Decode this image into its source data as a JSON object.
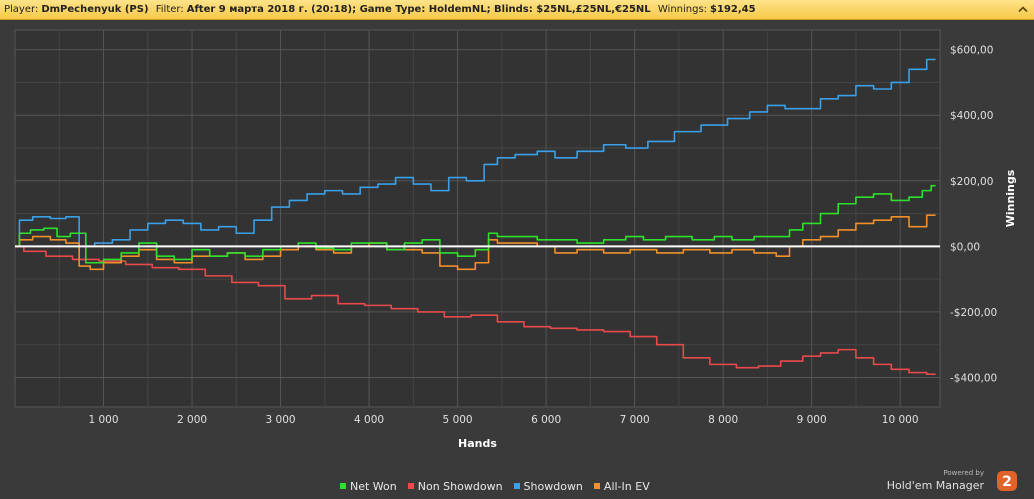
{
  "header": {
    "player_label": "Player:",
    "player_value": "DmPechenyuk (PS)",
    "filter_label": "Filter:",
    "filter_value": "After 9 марта 2018 г. (20:18); Game Type: HoldemNL; Blinds: $25NL,£25NL,€25NL",
    "winnings_label": "Winnings:",
    "winnings_value": "$192,45",
    "collapse_icon": "chevron-up-icon"
  },
  "branding": {
    "powered_by": "Powered by",
    "product": "Hold'em Manager",
    "logo_text": "2"
  },
  "chart_data": {
    "type": "line",
    "xlabel": "Hands",
    "ylabel": "Winnings",
    "xlim": [
      0,
      10450
    ],
    "ylim": [
      -490,
      660
    ],
    "x_ticks": [
      1000,
      2000,
      3000,
      4000,
      5000,
      6000,
      7000,
      8000,
      9000,
      10000
    ],
    "x_tick_labels": [
      "1 000",
      "2 000",
      "3 000",
      "4 000",
      "5 000",
      "6 000",
      "7 000",
      "8 000",
      "9 000",
      "10 000"
    ],
    "y_ticks": [
      -400,
      -200,
      0,
      200,
      400,
      600
    ],
    "y_tick_labels": [
      "-$400,00",
      "-$200,00",
      "$0,00",
      "$200,00",
      "$400,00",
      "$600,00"
    ],
    "grid": true,
    "legend_position": "bottom",
    "zero_line_color": "#ffffff",
    "series": [
      {
        "name": "Net Won",
        "color": "#2ee02e",
        "x": [
          0,
          100,
          250,
          400,
          550,
          700,
          900,
          1100,
          1300,
          1500,
          1700,
          1900,
          2100,
          2300,
          2500,
          2700,
          2900,
          3100,
          3300,
          3500,
          3700,
          3900,
          4100,
          4300,
          4500,
          4700,
          4900,
          5100,
          5300,
          5400,
          5500,
          5800,
          6000,
          6200,
          6500,
          6800,
          7000,
          7200,
          7500,
          7800,
          8000,
          8200,
          8500,
          8700,
          8800,
          9000,
          9200,
          9400,
          9600,
          9800,
          10000,
          10200,
          10300,
          10400
        ],
        "y": [
          0,
          40,
          50,
          55,
          30,
          40,
          -50,
          -40,
          -20,
          10,
          -30,
          -40,
          -10,
          -30,
          -20,
          -30,
          -10,
          0,
          10,
          -5,
          -10,
          10,
          10,
          -10,
          10,
          20,
          -20,
          -30,
          -10,
          40,
          30,
          30,
          20,
          20,
          10,
          20,
          30,
          20,
          30,
          20,
          30,
          20,
          30,
          30,
          50,
          70,
          100,
          130,
          150,
          160,
          140,
          150,
          170,
          185
        ]
      },
      {
        "name": "Non Showdown",
        "color": "#e84a4a",
        "x": [
          0,
          200,
          500,
          800,
          1100,
          1400,
          1700,
          2000,
          2300,
          2600,
          2900,
          3200,
          3500,
          3800,
          4100,
          4400,
          4700,
          5000,
          5300,
          5600,
          5900,
          6200,
          6500,
          6800,
          7100,
          7400,
          7700,
          8000,
          8300,
          8500,
          8800,
          9000,
          9200,
          9400,
          9600,
          9800,
          10000,
          10200,
          10400
        ],
        "y": [
          0,
          -15,
          -30,
          -40,
          -45,
          -55,
          -65,
          -70,
          -90,
          -110,
          -120,
          -160,
          -150,
          -175,
          -180,
          -190,
          -200,
          -215,
          -210,
          -230,
          -245,
          -250,
          -255,
          -260,
          -275,
          -300,
          -340,
          -360,
          -370,
          -365,
          -350,
          -335,
          -325,
          -315,
          -340,
          -360,
          -375,
          -385,
          -390
        ]
      },
      {
        "name": "Showdown",
        "color": "#3aa0e8",
        "x": [
          0,
          100,
          300,
          500,
          650,
          800,
          1000,
          1200,
          1400,
          1600,
          1800,
          2000,
          2200,
          2400,
          2600,
          2800,
          3000,
          3200,
          3400,
          3600,
          3800,
          4000,
          4200,
          4400,
          4600,
          4800,
          5000,
          5200,
          5400,
          5500,
          5800,
          6000,
          6200,
          6500,
          6800,
          7000,
          7300,
          7600,
          7900,
          8200,
          8400,
          8600,
          8800,
          9000,
          9200,
          9400,
          9600,
          9800,
          10000,
          10200,
          10400
        ],
        "y": [
          0,
          80,
          90,
          85,
          90,
          0,
          10,
          20,
          50,
          70,
          80,
          70,
          50,
          60,
          40,
          80,
          120,
          140,
          160,
          170,
          160,
          180,
          190,
          210,
          190,
          170,
          210,
          200,
          250,
          270,
          280,
          290,
          270,
          290,
          310,
          300,
          320,
          350,
          370,
          390,
          410,
          430,
          420,
          420,
          450,
          460,
          490,
          480,
          500,
          540,
          570
        ]
      },
      {
        "name": "All-In EV",
        "color": "#f0902a",
        "x": [
          0,
          100,
          300,
          500,
          650,
          800,
          900,
          1100,
          1300,
          1500,
          1700,
          1900,
          2100,
          2300,
          2500,
          2700,
          2900,
          3100,
          3300,
          3500,
          3700,
          3900,
          4100,
          4300,
          4500,
          4700,
          4900,
          5100,
          5300,
          5400,
          5500,
          5800,
          6000,
          6200,
          6500,
          6800,
          7100,
          7400,
          7700,
          8000,
          8200,
          8500,
          8700,
          8800,
          9000,
          9200,
          9400,
          9600,
          9800,
          10000,
          10200,
          10400
        ],
        "y": [
          0,
          20,
          30,
          20,
          10,
          -60,
          -70,
          -50,
          -30,
          -10,
          -40,
          -50,
          -30,
          -30,
          -20,
          -40,
          -30,
          -10,
          0,
          -10,
          -20,
          0,
          10,
          -10,
          -10,
          -20,
          -60,
          -70,
          -50,
          20,
          10,
          10,
          0,
          -20,
          -10,
          -20,
          -10,
          -20,
          -10,
          -20,
          -10,
          -20,
          -30,
          0,
          20,
          30,
          50,
          70,
          80,
          90,
          60,
          95
        ]
      }
    ]
  }
}
